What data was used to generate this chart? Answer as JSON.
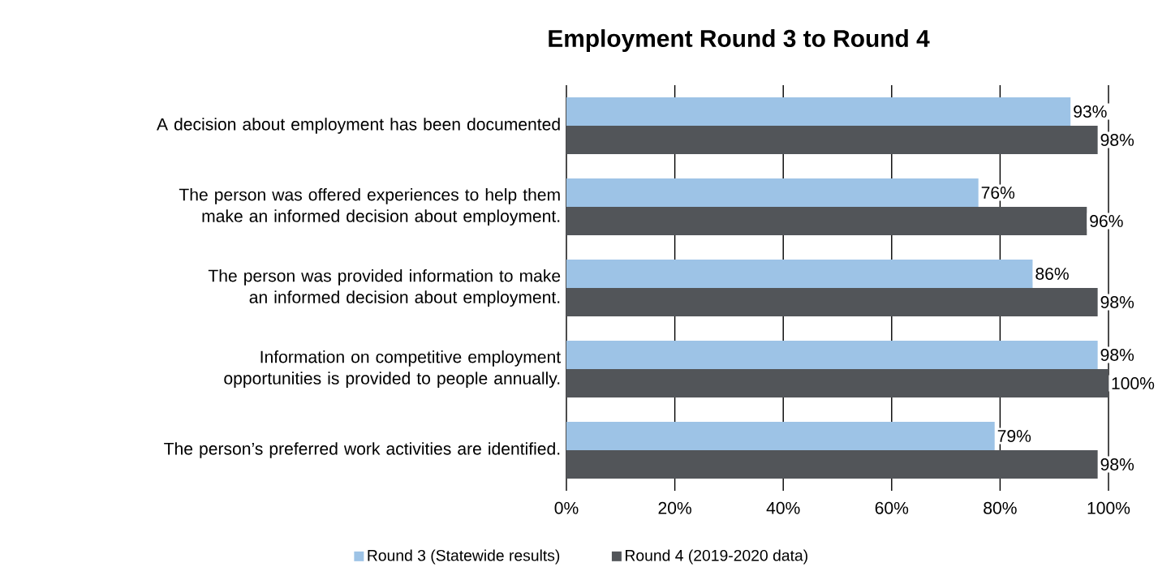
{
  "chart_data": {
    "type": "bar",
    "orientation": "horizontal",
    "title": "Employment Round 3 to Round 4",
    "categories": [
      "A decision about employment has been documented",
      "The person was offered experiences to help them make an informed decision about employment.",
      "The person was provided information to make an informed decision about employment.",
      "Information on competitive employment opportunities is provided to people annually.",
      "The person’s preferred work activities are identified."
    ],
    "series": [
      {
        "name": "Round 3 (Statewide results)",
        "color": "#9dc3e6",
        "values": [
          93,
          76,
          86,
          98,
          79
        ],
        "value_labels": [
          "93%",
          "76%",
          "86%",
          "98%",
          "79%"
        ]
      },
      {
        "name": "Round 4 (2019-2020 data)",
        "color": "#525559",
        "values": [
          98,
          96,
          98,
          100,
          98
        ],
        "value_labels": [
          "98%",
          "96%",
          "98%",
          "100%",
          "98%"
        ]
      }
    ],
    "xlim": [
      0,
      100
    ],
    "xticks": [
      {
        "value": 0,
        "label": "0%"
      },
      {
        "value": 20,
        "label": "20%"
      },
      {
        "value": 40,
        "label": "40%"
      },
      {
        "value": 60,
        "label": "60%"
      },
      {
        "value": 80,
        "label": "80%"
      },
      {
        "value": 100,
        "label": "100%"
      }
    ],
    "grid": "x",
    "legend": "bottom"
  }
}
